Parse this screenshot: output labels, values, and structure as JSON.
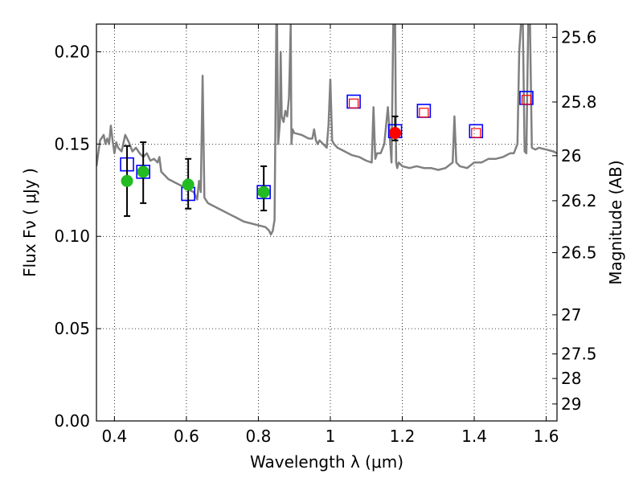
{
  "chart_data": {
    "type": "scatter",
    "xlabel": "Wavelength  λ (μm)",
    "ylabel": "Flux  Fν  ( μJy )",
    "ylabel_right": "Magnitude (AB)",
    "xlim": [
      0.35,
      1.63
    ],
    "ylim": [
      0.0,
      0.215
    ],
    "grid": true,
    "x_ticks": [
      0.4,
      0.6,
      0.8,
      1.0,
      1.2,
      1.4,
      1.6
    ],
    "x_tick_labels": [
      "0.4",
      "0.6",
      "0.8",
      "1",
      "1.2",
      "1.4",
      "1.6"
    ],
    "y_ticks": [
      0.0,
      0.05,
      0.1,
      0.15,
      0.2
    ],
    "y_tick_labels": [
      "0.00",
      "0.05",
      "0.10",
      "0.15",
      "0.20"
    ],
    "right_ticks": [
      {
        "flux": 0.2078,
        "label": "25.6"
      },
      {
        "flux": 0.1728,
        "label": "25.8"
      },
      {
        "flux": 0.1437,
        "label": "26"
      },
      {
        "flux": 0.1193,
        "label": "26.2"
      },
      {
        "flux": 0.0912,
        "label": "26.5"
      },
      {
        "flux": 0.0575,
        "label": "27"
      },
      {
        "flux": 0.0363,
        "label": "27.5"
      },
      {
        "flux": 0.023,
        "label": "28"
      },
      {
        "flux": 0.0092,
        "label": "29"
      }
    ],
    "series": [
      {
        "name": "model SED",
        "style": "line",
        "color": "#808080",
        "x": [
          0.35,
          0.36,
          0.37,
          0.375,
          0.38,
          0.385,
          0.39,
          0.395,
          0.4,
          0.405,
          0.41,
          0.415,
          0.42,
          0.43,
          0.44,
          0.45,
          0.46,
          0.47,
          0.48,
          0.49,
          0.5,
          0.51,
          0.52,
          0.525,
          0.53,
          0.54,
          0.55,
          0.56,
          0.57,
          0.58,
          0.59,
          0.6,
          0.61,
          0.62,
          0.63,
          0.635,
          0.64,
          0.645,
          0.65,
          0.66,
          0.67,
          0.68,
          0.7,
          0.72,
          0.74,
          0.76,
          0.78,
          0.8,
          0.82,
          0.83,
          0.835,
          0.84,
          0.845,
          0.85,
          0.852,
          0.855,
          0.86,
          0.862,
          0.865,
          0.87,
          0.875,
          0.88,
          0.885,
          0.887,
          0.89,
          0.892,
          0.895,
          0.9,
          0.92,
          0.94,
          0.95,
          0.955,
          0.96,
          0.965,
          0.97,
          0.98,
          0.99,
          0.995,
          1.0,
          1.005,
          1.01,
          1.02,
          1.04,
          1.06,
          1.08,
          1.1,
          1.115,
          1.12,
          1.125,
          1.13,
          1.14,
          1.15,
          1.16,
          1.17,
          1.175,
          1.18,
          1.183,
          1.186,
          1.19,
          1.2,
          1.22,
          1.24,
          1.26,
          1.28,
          1.3,
          1.32,
          1.34,
          1.345,
          1.35,
          1.36,
          1.38,
          1.4,
          1.42,
          1.44,
          1.46,
          1.48,
          1.5,
          1.51,
          1.52,
          1.525,
          1.53,
          1.535,
          1.54,
          1.545,
          1.55,
          1.555,
          1.56,
          1.57,
          1.58,
          1.6,
          1.62,
          1.63
        ],
        "y": [
          0.138,
          0.152,
          0.155,
          0.15,
          0.153,
          0.15,
          0.16,
          0.152,
          0.145,
          0.151,
          0.148,
          0.147,
          0.146,
          0.155,
          0.151,
          0.146,
          0.148,
          0.145,
          0.143,
          0.145,
          0.141,
          0.142,
          0.14,
          0.143,
          0.135,
          0.133,
          0.131,
          0.13,
          0.129,
          0.128,
          0.127,
          0.126,
          0.125,
          0.124,
          0.12,
          0.13,
          0.124,
          0.187,
          0.121,
          0.118,
          0.117,
          0.116,
          0.114,
          0.112,
          0.11,
          0.108,
          0.107,
          0.106,
          0.105,
          0.103,
          0.101,
          0.103,
          0.109,
          0.215,
          0.215,
          0.15,
          0.162,
          0.2,
          0.165,
          0.162,
          0.168,
          0.165,
          0.175,
          0.19,
          0.215,
          0.15,
          0.158,
          0.156,
          0.155,
          0.153,
          0.153,
          0.158,
          0.152,
          0.15,
          0.152,
          0.15,
          0.148,
          0.16,
          0.185,
          0.152,
          0.15,
          0.148,
          0.146,
          0.144,
          0.143,
          0.141,
          0.14,
          0.17,
          0.142,
          0.145,
          0.145,
          0.15,
          0.17,
          0.14,
          0.215,
          0.215,
          0.14,
          0.137,
          0.14,
          0.138,
          0.137,
          0.138,
          0.137,
          0.137,
          0.136,
          0.137,
          0.14,
          0.165,
          0.14,
          0.138,
          0.137,
          0.14,
          0.14,
          0.142,
          0.142,
          0.143,
          0.145,
          0.145,
          0.15,
          0.2,
          0.215,
          0.215,
          0.146,
          0.145,
          0.215,
          0.215,
          0.148,
          0.147,
          0.148,
          0.147,
          0.146,
          0.145
        ]
      },
      {
        "name": "observed photometry (green)",
        "style": "marker",
        "color": "#22bb22",
        "x": [
          0.435,
          0.48,
          0.605,
          0.815
        ],
        "y": [
          0.13,
          0.135,
          0.128,
          0.124
        ],
        "yerr_low": [
          0.019,
          0.017,
          0.013,
          0.01
        ],
        "yerr_high": [
          0.019,
          0.016,
          0.014,
          0.014
        ]
      },
      {
        "name": "observed photometry (red)",
        "style": "marker",
        "color": "#ff0000",
        "x": [
          1.18
        ],
        "y": [
          0.156
        ],
        "yerr_low": [
          0.004
        ],
        "yerr_high": [
          0.009
        ]
      },
      {
        "name": "model band flux (blue squares)",
        "style": "open-square",
        "color": "#0000ff",
        "x": [
          0.435,
          0.48,
          0.605,
          0.815,
          1.065,
          1.18,
          1.26,
          1.405,
          1.545
        ],
        "y": [
          0.139,
          0.135,
          0.123,
          0.124,
          0.173,
          0.157,
          0.168,
          0.157,
          0.175
        ]
      },
      {
        "name": "model band flux (red squares)",
        "style": "open-square-small",
        "color": "#ff0000",
        "x": [
          1.065,
          1.26,
          1.405,
          1.545
        ],
        "y": [
          0.172,
          0.167,
          0.156,
          0.174
        ]
      }
    ]
  }
}
